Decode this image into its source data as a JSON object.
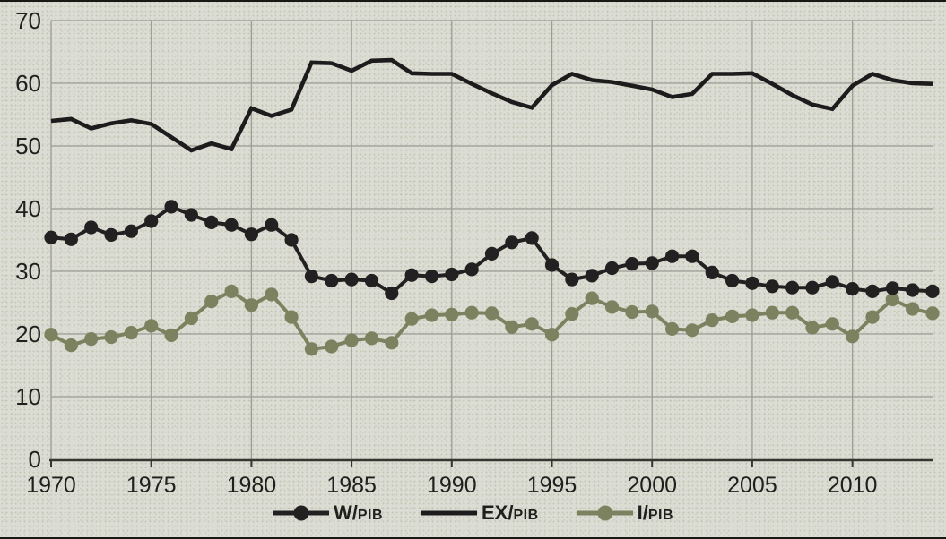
{
  "chart_data": {
    "type": "line",
    "years": [
      1970,
      1971,
      1972,
      1973,
      1974,
      1975,
      1976,
      1977,
      1978,
      1979,
      1980,
      1981,
      1982,
      1983,
      1984,
      1985,
      1986,
      1987,
      1988,
      1989,
      1990,
      1991,
      1992,
      1993,
      1994,
      1995,
      1996,
      1997,
      1998,
      1999,
      2000,
      2001,
      2002,
      2003,
      2004,
      2005,
      2006,
      2007,
      2008,
      2009,
      2010,
      2011,
      2012,
      2013,
      2014
    ],
    "series": [
      {
        "name": "W/PIB",
        "legend_main": "W/",
        "legend_sub": "PIB",
        "color": "#232021",
        "markers": true,
        "values": [
          35.4,
          35.1,
          37.0,
          35.8,
          36.4,
          38.0,
          40.3,
          39.0,
          37.8,
          37.4,
          35.9,
          37.4,
          35.0,
          29.2,
          28.5,
          28.7,
          28.5,
          26.5,
          29.4,
          29.2,
          29.5,
          30.3,
          32.8,
          34.6,
          35.3,
          31.0,
          28.7,
          29.3,
          30.5,
          31.2,
          31.3,
          32.4,
          32.4,
          29.8,
          28.5,
          28.1,
          27.6,
          27.4,
          27.4,
          28.3,
          27.2,
          26.8,
          27.3,
          27.0,
          26.8
        ]
      },
      {
        "name": "EX/PIB",
        "legend_main": "EX/",
        "legend_sub": "PIB",
        "color": "#1d1b1c",
        "markers": false,
        "values": [
          54.0,
          54.3,
          52.8,
          53.6,
          54.1,
          53.5,
          51.4,
          49.3,
          50.4,
          49.5,
          56.0,
          54.8,
          55.8,
          63.3,
          63.2,
          62.0,
          63.6,
          63.7,
          61.6,
          61.5,
          61.5,
          59.9,
          58.4,
          57.0,
          56.1,
          59.7,
          61.5,
          60.5,
          60.2,
          59.6,
          59.0,
          57.8,
          58.3,
          61.5,
          61.5,
          61.6,
          59.9,
          58.1,
          56.6,
          55.9,
          59.6,
          61.5,
          60.5,
          60.0,
          59.9
        ]
      },
      {
        "name": "I/PIB",
        "legend_main": "I/",
        "legend_sub": "PIB",
        "color": "#7c815f",
        "markers": true,
        "values": [
          19.9,
          18.2,
          19.2,
          19.5,
          20.2,
          21.3,
          19.8,
          22.5,
          25.2,
          26.8,
          24.6,
          26.3,
          22.7,
          17.6,
          18.0,
          19.0,
          19.3,
          18.6,
          22.4,
          23.0,
          23.1,
          23.4,
          23.3,
          21.1,
          21.6,
          19.9,
          23.2,
          25.7,
          24.3,
          23.5,
          23.6,
          20.8,
          20.6,
          22.2,
          22.8,
          23.0,
          23.4,
          23.4,
          21.0,
          21.6,
          19.6,
          22.7,
          25.5,
          24.0,
          23.3
        ]
      }
    ],
    "ylim": [
      0,
      70
    ],
    "y_ticks": [
      70,
      60,
      50,
      40,
      30,
      20,
      10,
      0
    ],
    "x_ticks": [
      1970,
      1975,
      1980,
      1985,
      1990,
      1995,
      2000,
      2005,
      2010
    ],
    "grid": true,
    "legend_position": "bottom",
    "colors": {
      "background": "#dbdcd3",
      "grid": "#9b9d93",
      "axis": "#35362f",
      "text": "#1f1f1d",
      "figure_border": "#181815"
    }
  }
}
